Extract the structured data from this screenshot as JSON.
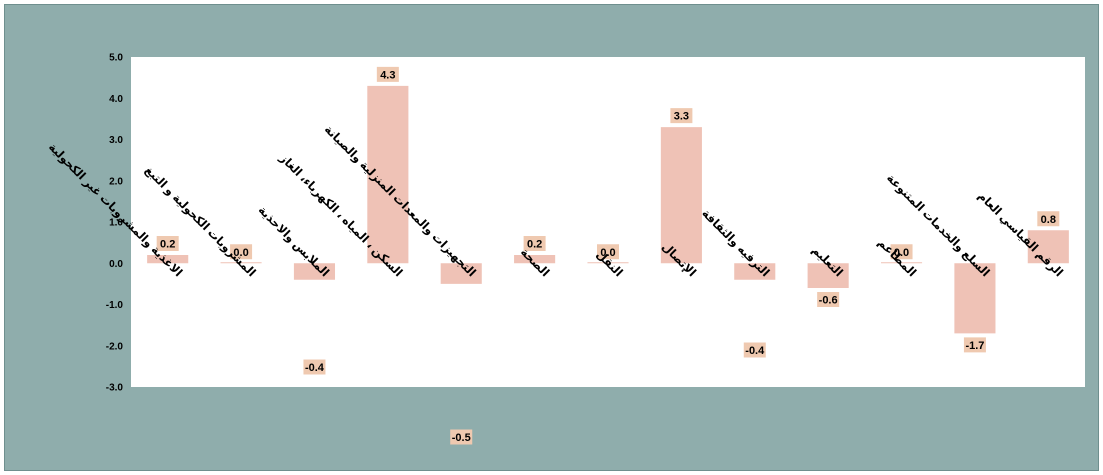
{
  "chart_data": {
    "type": "bar",
    "categories": [
      "الاغذية والمشروبات غير الكحولية",
      "المشروبات الكحولية و التبغ",
      "الملابس والاحذية",
      "السكن ، المياه ، الكهرباء، الغاز",
      "التجهيزات والمعدات المنزلية والصيانة",
      "الصحة",
      "النقل",
      "الإتصال",
      "الترفيه والثقافة",
      "التعليم",
      "المطاعم",
      "السلع والخدمات المتنوعة",
      "الرقم القياسي العام"
    ],
    "values": [
      0.2,
      0.0,
      -0.4,
      4.3,
      -0.5,
      0.2,
      0.0,
      3.3,
      -0.4,
      -0.6,
      0.0,
      -1.7,
      0.8
    ],
    "data_labels": [
      "0.2",
      "0.0",
      "-0.4",
      "4.3",
      "-0.5",
      "0.2",
      "0.0",
      "3.3",
      "-0.4",
      "-0.6",
      "0.0",
      "-1.7",
      "0.8"
    ],
    "ylim": [
      -3.0,
      5.0
    ],
    "yticks": [
      "5.0",
      "4.0",
      "3.0",
      "2.0",
      "1.0",
      "0.0",
      "-1.0",
      "-2.0",
      "-3.0"
    ],
    "grid": false,
    "legend": "none",
    "colors": {
      "frame_background": "#8fadac",
      "plot_background": "#ffffff",
      "bar": "#efc2b6",
      "label_background": "#efc9b0"
    }
  }
}
